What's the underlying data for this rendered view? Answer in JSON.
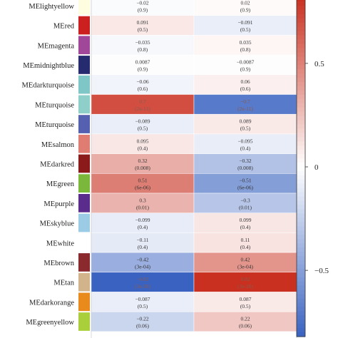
{
  "chart_data": {
    "type": "heatmap",
    "columns": [
      "",
      ""
    ],
    "rows": [
      {
        "label": "MElightyellow",
        "color": "#fffde0",
        "values": [
          -0.02,
          0.02
        ],
        "pvalues": [
          "(0.9)",
          "(0.9)"
        ]
      },
      {
        "label": "MEred",
        "color": "#cc2020",
        "values": [
          0.091,
          -0.091
        ],
        "pvalues": [
          "(0.5)",
          "(0.5)"
        ]
      },
      {
        "label": "MEmagenta",
        "color": "#a0479a",
        "values": [
          -0.035,
          0.035
        ],
        "pvalues": [
          "(0.8)",
          "(0.8)"
        ]
      },
      {
        "label": "MEmidnightblue",
        "color": "#262a6e",
        "values": [
          0.0087,
          -0.0087
        ],
        "pvalues": [
          "(0.9)",
          "(0.9)"
        ]
      },
      {
        "label": "MEdarkturquoise",
        "color": "#7fc6c6",
        "values": [
          -0.06,
          0.06
        ],
        "pvalues": [
          "(0.6)",
          "(0.6)"
        ]
      },
      {
        "label": "MEturquoise",
        "color": "#8fcfc9",
        "values": [
          0.7,
          -0.7
        ],
        "pvalues": [
          "(2e-11)",
          "(2e-11)"
        ]
      },
      {
        "label": "MEturquoise",
        "color": "#5660b0",
        "values": [
          -0.089,
          0.089
        ],
        "pvalues": [
          "(0.5)",
          "(0.5)"
        ]
      },
      {
        "label": "MEsalmon",
        "color": "#e07d72",
        "values": [
          0.095,
          -0.095
        ],
        "pvalues": [
          "(0.4)",
          "(0.4)"
        ]
      },
      {
        "label": "MEdarkred",
        "color": "#8b1a1a",
        "values": [
          0.32,
          -0.32
        ],
        "pvalues": [
          "(0.008)",
          "(0.008)"
        ]
      },
      {
        "label": "MEgreen",
        "color": "#7ab73a",
        "values": [
          0.51,
          -0.51
        ],
        "pvalues": [
          "(6e-06)",
          "(6e-06)"
        ]
      },
      {
        "label": "MEpurple",
        "color": "#5a2d8c",
        "values": [
          0.3,
          -0.3
        ],
        "pvalues": [
          "(0.01)",
          "(0.01)"
        ]
      },
      {
        "label": "MEskyblue",
        "color": "#9ccbe6",
        "values": [
          -0.099,
          0.099
        ],
        "pvalues": [
          "(0.4)",
          "(0.4)"
        ]
      },
      {
        "label": "MEwhite",
        "color": "#ffffff",
        "values": [
          -0.11,
          0.11
        ],
        "pvalues": [
          "(0.4)",
          "(0.4)"
        ]
      },
      {
        "label": "MEbrown",
        "color": "#8a2a2e",
        "values": [
          -0.42,
          0.42
        ],
        "pvalues": [
          "(3e-04)",
          "(3e-04)"
        ]
      },
      {
        "label": "MEtan",
        "color": "#d2b48c",
        "values": [
          -0.82,
          0.82
        ],
        "pvalues": [
          "(3e-20)",
          "(3e-20)"
        ]
      },
      {
        "label": "MEdarkorange",
        "color": "#e88a1c",
        "values": [
          -0.087,
          0.087
        ],
        "pvalues": [
          "(0.5)",
          "(0.5)"
        ]
      },
      {
        "label": "MEgreenyellow",
        "color": "#a9cf3a",
        "values": [
          -0.22,
          0.22
        ],
        "pvalues": [
          "(0.06)",
          "(0.06)"
        ]
      }
    ],
    "scale": {
      "min": -0.82,
      "max": 0.82,
      "colors": {
        "negative": "#3a63c1",
        "neutral": "#ffffff",
        "positive": "#c9301f"
      },
      "ticks": [
        0.5,
        0,
        -0.5
      ],
      "tick_labels": [
        "0.5",
        "0",
        "−0.5"
      ]
    }
  }
}
